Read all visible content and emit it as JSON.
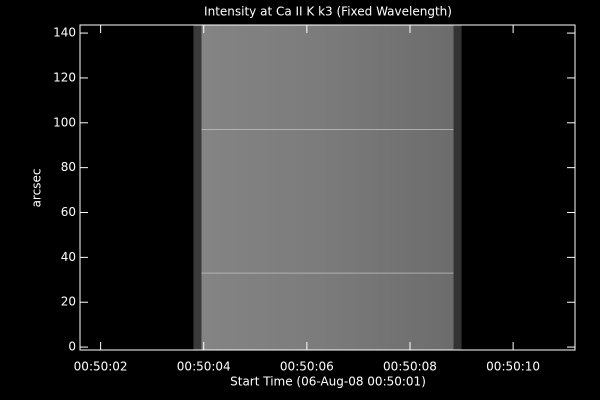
{
  "chart_data": {
    "type": "image",
    "title": "Intensity at Ca II K k3 (Fixed Wavelength)",
    "xlabel": "Start Time (06-Aug-08 00:50:01)",
    "ylabel": "arcsec",
    "xlim": [
      1.6,
      11.2
    ],
    "ylim": [
      -1.3,
      143.6
    ],
    "xticks": [
      {
        "value": 2,
        "label": "00:50:02"
      },
      {
        "value": 4,
        "label": "00:50:04"
      },
      {
        "value": 6,
        "label": "00:50:06"
      },
      {
        "value": 8,
        "label": "00:50:08"
      },
      {
        "value": 10,
        "label": "00:50:10"
      }
    ],
    "yticks": [
      0,
      20,
      40,
      60,
      80,
      100,
      120,
      140
    ],
    "image_x": [
      3.8,
      9.0
    ],
    "bright_rows": [
      33,
      97
    ],
    "color": "#808080"
  }
}
